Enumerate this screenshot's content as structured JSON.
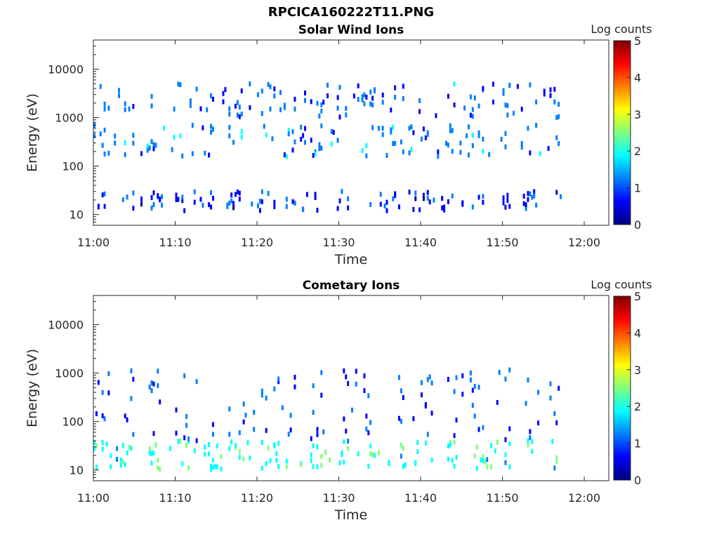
{
  "page_title": "RPCICA160222T11.PNG",
  "colormap": [
    "#00007f",
    "#0000ff",
    "#007fff",
    "#00ffff",
    "#7fff7f",
    "#ffff00",
    "#ff7f00",
    "#ff0000",
    "#7f0000"
  ],
  "chart_data": [
    {
      "type": "heatmap",
      "title": "Solar Wind Ions",
      "xlabel": "Time",
      "ylabel": "Energy (eV)",
      "x_ticks": [
        "11:00",
        "11:10",
        "11:20",
        "11:30",
        "11:40",
        "11:50",
        "12:00"
      ],
      "xlim": [
        "11:00",
        "12:03"
      ],
      "y_scale": "log",
      "y_ticks": [
        "10",
        "100",
        "1000",
        "10000"
      ],
      "ylim": [
        6,
        40000
      ],
      "colorbar": {
        "label": "Log counts",
        "ticks": [
          "0",
          "1",
          "2",
          "3",
          "4",
          "5"
        ],
        "range": [
          0,
          5
        ]
      },
      "data_end": "11:57",
      "bands": [
        {
          "energy_min": 12,
          "energy_max": 30,
          "value": 0.8
        },
        {
          "energy_min": 150,
          "energy_max": 700,
          "value": 1.3
        },
        {
          "energy_min": 1000,
          "energy_max": 5000,
          "value": 1.1
        }
      ]
    },
    {
      "type": "heatmap",
      "title": "Cometary Ions",
      "xlabel": "Time",
      "ylabel": "Energy (eV)",
      "x_ticks": [
        "11:00",
        "11:10",
        "11:20",
        "11:30",
        "11:40",
        "11:50",
        "12:00"
      ],
      "xlim": [
        "11:00",
        "12:03"
      ],
      "y_scale": "log",
      "y_ticks": [
        "10",
        "100",
        "1000",
        "10000"
      ],
      "ylim": [
        6,
        40000
      ],
      "colorbar": {
        "label": "Log counts",
        "ticks": [
          "0",
          "1",
          "2",
          "3",
          "4",
          "5"
        ],
        "range": [
          0,
          5
        ]
      },
      "data_end": "11:57",
      "bands": [
        {
          "energy_min": 10,
          "energy_max": 40,
          "value": 2.0
        },
        {
          "energy_min": 40,
          "energy_max": 1200,
          "value": 0.9
        }
      ]
    }
  ]
}
